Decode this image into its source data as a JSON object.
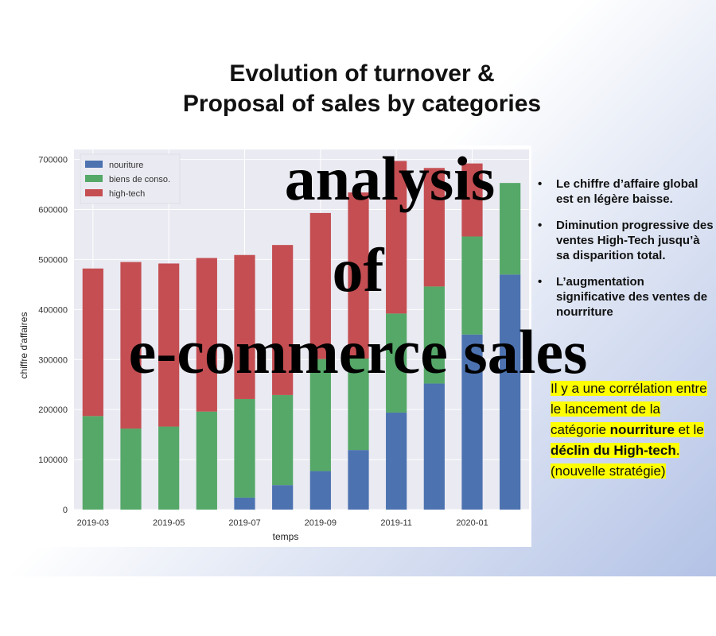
{
  "slide": {
    "title_line1": "Evolution of turnover &",
    "title_line2": "Proposal of sales by categories"
  },
  "overlay": {
    "line1": "analysis",
    "line2": "of",
    "line3": "e-commerce sales"
  },
  "bullets": [
    "Le chiffre d’affaire global est en légère baisse.",
    "Diminution progressive des ventes High-Tech jusqu’à sa disparition total.",
    "L’augmentation significative des ventes de nourriture"
  ],
  "note": {
    "part1": "Il y a une corrélation entre le lancement de la catégorie ",
    "bold1": "nourriture",
    "part2": " et le ",
    "bold2": "déclin du High-tech",
    "part3": ". (nouvelle stratégie)"
  },
  "colors": {
    "nourriture": "#4c72b0",
    "biens": "#55a868",
    "hightech": "#c44e52",
    "plot_bg": "#eaeaf2",
    "accent_highlight": "#ffff00"
  },
  "chart_data": {
    "type": "bar",
    "stacked": true,
    "title": "",
    "xlabel": "temps",
    "ylabel": "chiffre d'affaires",
    "ylim": [
      0,
      720000
    ],
    "yticks": [
      0,
      100000,
      200000,
      300000,
      400000,
      500000,
      600000,
      700000
    ],
    "categories": [
      "2019-03",
      "2019-04",
      "2019-05",
      "2019-06",
      "2019-07",
      "2019-08",
      "2019-09",
      "2019-10",
      "2019-11",
      "2019-12",
      "2020-01",
      "2020-02"
    ],
    "xtick_labels": [
      "2019-03",
      "2019-05",
      "2019-07",
      "2019-09",
      "2019-11",
      "2020-01"
    ],
    "legend_position": "top-left",
    "grid": true,
    "series": [
      {
        "name": "nouriture",
        "values": [
          0,
          0,
          0,
          0,
          24000,
          49000,
          77000,
          119000,
          194000,
          252000,
          350000,
          470000
        ]
      },
      {
        "name": "biens de conso.",
        "values": [
          187000,
          162000,
          166000,
          196000,
          197000,
          180000,
          224000,
          183000,
          198000,
          194000,
          196000,
          183000
        ]
      },
      {
        "name": "high-tech",
        "values": [
          295000,
          333000,
          326000,
          307000,
          288000,
          300000,
          292000,
          332000,
          305000,
          237000,
          146000,
          0
        ]
      }
    ]
  }
}
